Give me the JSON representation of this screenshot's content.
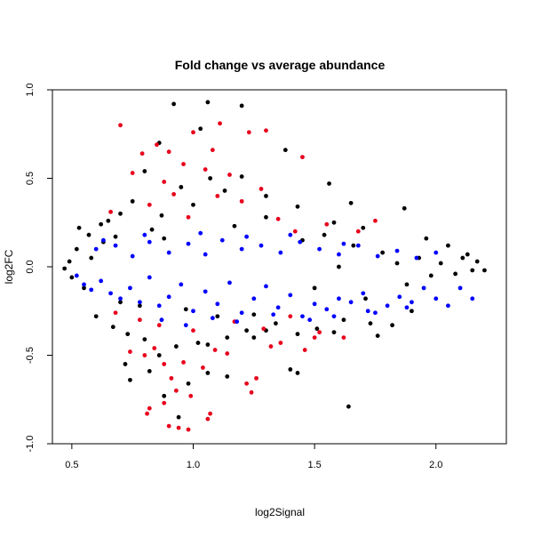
{
  "chart_data": {
    "type": "scatter",
    "title": "Fold change vs average abundance",
    "xlabel": "log2Signal",
    "ylabel": "log2FC",
    "xlim": [
      0.42,
      2.29
    ],
    "ylim": [
      -1.0,
      1.0
    ],
    "x_ticks": [
      "0.5",
      "1.0",
      "1.5",
      "2.0"
    ],
    "y_ticks": [
      "-1.0",
      "-0.5",
      "0.0",
      "0.5",
      "1.0"
    ],
    "x_tick_values": [
      0.5,
      1.0,
      1.5,
      2.0
    ],
    "y_tick_values": [
      -1.0,
      -0.5,
      0.0,
      0.5,
      1.0
    ],
    "grid": false,
    "legend": "none",
    "reference_lines": [
      {
        "axis": "y",
        "value": 1.0,
        "color": "#0000cc"
      },
      {
        "axis": "y",
        "value": -1.0,
        "color": "#0000cc"
      }
    ],
    "series": [
      {
        "color": "#000000",
        "points": [
          [
            0.92,
            0.92
          ],
          [
            1.06,
            0.93
          ],
          [
            1.2,
            0.91
          ],
          [
            1.03,
            0.78
          ],
          [
            0.86,
            0.7
          ],
          [
            1.38,
            0.66
          ],
          [
            1.56,
            0.47
          ],
          [
            1.2,
            0.51
          ],
          [
            0.8,
            0.54
          ],
          [
            1.07,
            0.5
          ],
          [
            1.3,
            0.4
          ],
          [
            1.13,
            0.43
          ],
          [
            0.95,
            0.45
          ],
          [
            0.75,
            0.37
          ],
          [
            1.43,
            0.34
          ],
          [
            1.65,
            0.36
          ],
          [
            1.87,
            0.33
          ],
          [
            0.7,
            0.3
          ],
          [
            1.0,
            0.35
          ],
          [
            0.87,
            0.29
          ],
          [
            1.3,
            0.28
          ],
          [
            1.58,
            0.25
          ],
          [
            1.7,
            0.22
          ],
          [
            1.96,
            0.16
          ],
          [
            2.05,
            0.12
          ],
          [
            2.13,
            0.07
          ],
          [
            2.2,
            -0.02
          ],
          [
            2.17,
            0.03
          ],
          [
            0.53,
            0.22
          ],
          [
            0.57,
            0.18
          ],
          [
            0.62,
            0.24
          ],
          [
            0.67,
            -0.34
          ],
          [
            0.73,
            -0.38
          ],
          [
            0.8,
            -0.41
          ],
          [
            0.86,
            -0.5
          ],
          [
            0.93,
            -0.45
          ],
          [
            1.06,
            -0.44
          ],
          [
            1.14,
            -0.4
          ],
          [
            1.22,
            -0.36
          ],
          [
            1.3,
            -0.36
          ],
          [
            1.43,
            -0.38
          ],
          [
            1.51,
            -0.35
          ],
          [
            1.62,
            -0.3
          ],
          [
            1.73,
            -0.32
          ],
          [
            1.9,
            -0.25
          ],
          [
            0.72,
            -0.55
          ],
          [
            0.74,
            -0.64
          ],
          [
            0.82,
            -0.59
          ],
          [
            0.88,
            -0.73
          ],
          [
            0.94,
            -0.85
          ],
          [
            0.98,
            -0.66
          ],
          [
            1.02,
            -0.43
          ],
          [
            1.06,
            -0.6
          ],
          [
            1.14,
            -0.62
          ],
          [
            1.25,
            -0.4
          ],
          [
            1.4,
            -0.58
          ],
          [
            1.43,
            -0.6
          ],
          [
            1.58,
            -0.37
          ],
          [
            1.64,
            -0.79
          ],
          [
            1.76,
            -0.39
          ],
          [
            1.82,
            -0.33
          ],
          [
            0.5,
            -0.06
          ],
          [
            0.52,
            0.1
          ],
          [
            0.55,
            -0.12
          ],
          [
            0.58,
            0.05
          ],
          [
            0.63,
            0.14
          ],
          [
            0.68,
            0.17
          ],
          [
            0.7,
            -0.2
          ],
          [
            0.78,
            -0.22
          ],
          [
            0.83,
            0.21
          ],
          [
            0.97,
            -0.24
          ],
          [
            1.1,
            -0.28
          ],
          [
            1.17,
            0.23
          ],
          [
            1.25,
            -0.27
          ],
          [
            1.34,
            -0.32
          ],
          [
            1.45,
            0.15
          ],
          [
            1.5,
            -0.12
          ],
          [
            1.54,
            0.18
          ],
          [
            1.6,
            0.0
          ],
          [
            1.66,
            0.12
          ],
          [
            1.71,
            -0.18
          ],
          [
            1.78,
            0.08
          ],
          [
            1.84,
            0.02
          ],
          [
            1.88,
            -0.1
          ],
          [
            1.93,
            0.05
          ],
          [
            1.98,
            -0.05
          ],
          [
            2.02,
            0.02
          ],
          [
            2.08,
            -0.04
          ],
          [
            2.11,
            0.05
          ],
          [
            2.15,
            -0.02
          ],
          [
            0.47,
            -0.01
          ],
          [
            0.49,
            0.03
          ],
          [
            0.6,
            -0.28
          ],
          [
            0.65,
            0.26
          ],
          [
            0.88,
            0.16
          ]
        ]
      },
      {
        "color": "#e8001c",
        "points": [
          [
            0.7,
            0.8
          ],
          [
            1.11,
            0.81
          ],
          [
            1.3,
            0.77
          ],
          [
            1.0,
            0.76
          ],
          [
            0.85,
            0.69
          ],
          [
            1.23,
            0.76
          ],
          [
            0.79,
            0.64
          ],
          [
            0.9,
            0.65
          ],
          [
            1.08,
            0.66
          ],
          [
            1.45,
            0.62
          ],
          [
            0.96,
            0.58
          ],
          [
            1.05,
            0.55
          ],
          [
            0.75,
            0.53
          ],
          [
            1.15,
            0.52
          ],
          [
            0.88,
            0.48
          ],
          [
            1.28,
            0.44
          ],
          [
            0.92,
            0.41
          ],
          [
            1.1,
            0.4
          ],
          [
            1.2,
            0.37
          ],
          [
            0.82,
            0.35
          ],
          [
            0.66,
            0.31
          ],
          [
            1.35,
            0.27
          ],
          [
            1.55,
            0.24
          ],
          [
            1.68,
            0.2
          ],
          [
            1.75,
            0.26
          ],
          [
            0.98,
            0.28
          ],
          [
            1.42,
            0.2
          ],
          [
            0.68,
            -0.26
          ],
          [
            0.78,
            -0.3
          ],
          [
            0.86,
            -0.33
          ],
          [
            1.0,
            -0.36
          ],
          [
            1.17,
            -0.31
          ],
          [
            1.29,
            -0.35
          ],
          [
            1.4,
            -0.28
          ],
          [
            1.5,
            -0.4
          ],
          [
            1.62,
            -0.4
          ],
          [
            0.74,
            -0.48
          ],
          [
            0.8,
            -0.5
          ],
          [
            0.84,
            -0.46
          ],
          [
            0.88,
            -0.55
          ],
          [
            0.91,
            -0.63
          ],
          [
            0.96,
            -0.54
          ],
          [
            1.04,
            -0.57
          ],
          [
            1.09,
            -0.47
          ],
          [
            1.14,
            -0.49
          ],
          [
            1.22,
            -0.66
          ],
          [
            1.24,
            -0.71
          ],
          [
            1.32,
            -0.45
          ],
          [
            1.46,
            -0.47
          ],
          [
            1.52,
            -0.37
          ],
          [
            0.82,
            -0.8
          ],
          [
            0.81,
            -0.83
          ],
          [
            0.88,
            -0.77
          ],
          [
            0.93,
            -0.7
          ],
          [
            0.99,
            -0.73
          ],
          [
            1.07,
            -0.83
          ],
          [
            1.06,
            -0.86
          ],
          [
            1.26,
            -0.63
          ],
          [
            1.36,
            -0.43
          ],
          [
            0.9,
            -0.9
          ],
          [
            0.98,
            -0.92
          ],
          [
            0.94,
            -0.91
          ]
        ]
      },
      {
        "color": "#0000ff",
        "points": [
          [
            0.52,
            -0.05
          ],
          [
            0.55,
            -0.1
          ],
          [
            0.58,
            -0.13
          ],
          [
            0.62,
            -0.08
          ],
          [
            0.66,
            -0.15
          ],
          [
            0.7,
            -0.18
          ],
          [
            0.74,
            -0.12
          ],
          [
            0.78,
            -0.2
          ],
          [
            0.82,
            -0.06
          ],
          [
            0.86,
            -0.22
          ],
          [
            0.9,
            -0.17
          ],
          [
            0.95,
            -0.1
          ],
          [
            1.0,
            -0.25
          ],
          [
            1.05,
            -0.14
          ],
          [
            1.1,
            -0.21
          ],
          [
            1.15,
            -0.09
          ],
          [
            1.2,
            -0.26
          ],
          [
            1.25,
            -0.18
          ],
          [
            1.3,
            -0.11
          ],
          [
            1.35,
            -0.23
          ],
          [
            1.4,
            -0.16
          ],
          [
            1.45,
            -0.28
          ],
          [
            1.5,
            -0.21
          ],
          [
            1.55,
            -0.24
          ],
          [
            1.6,
            -0.18
          ],
          [
            1.65,
            -0.2
          ],
          [
            1.7,
            -0.15
          ],
          [
            1.75,
            -0.26
          ],
          [
            1.8,
            -0.22
          ],
          [
            1.85,
            -0.17
          ],
          [
            1.9,
            -0.2
          ],
          [
            1.95,
            -0.12
          ],
          [
            2.0,
            -0.18
          ],
          [
            2.05,
            -0.22
          ],
          [
            2.1,
            -0.12
          ],
          [
            2.15,
            -0.18
          ],
          [
            0.6,
            0.1
          ],
          [
            0.68,
            0.12
          ],
          [
            0.75,
            0.06
          ],
          [
            0.82,
            0.14
          ],
          [
            0.9,
            0.08
          ],
          [
            0.98,
            0.13
          ],
          [
            1.05,
            0.07
          ],
          [
            1.12,
            0.15
          ],
          [
            1.2,
            0.1
          ],
          [
            1.28,
            0.12
          ],
          [
            1.36,
            0.08
          ],
          [
            1.44,
            0.14
          ],
          [
            1.52,
            0.1
          ],
          [
            1.6,
            0.07
          ],
          [
            1.68,
            0.12
          ],
          [
            1.76,
            0.06
          ],
          [
            1.84,
            0.09
          ],
          [
            1.92,
            0.05
          ],
          [
            2.0,
            0.08
          ],
          [
            0.87,
            -0.3
          ],
          [
            0.97,
            -0.33
          ],
          [
            1.08,
            -0.29
          ],
          [
            1.18,
            -0.31
          ],
          [
            1.33,
            -0.27
          ],
          [
            1.48,
            -0.3
          ],
          [
            1.58,
            -0.28
          ],
          [
            1.72,
            -0.25
          ],
          [
            1.88,
            -0.23
          ],
          [
            0.63,
            0.15
          ],
          [
            0.8,
            0.18
          ],
          [
            1.03,
            0.19
          ],
          [
            1.22,
            0.17
          ],
          [
            1.4,
            0.18
          ],
          [
            1.62,
            0.13
          ]
        ]
      }
    ]
  }
}
